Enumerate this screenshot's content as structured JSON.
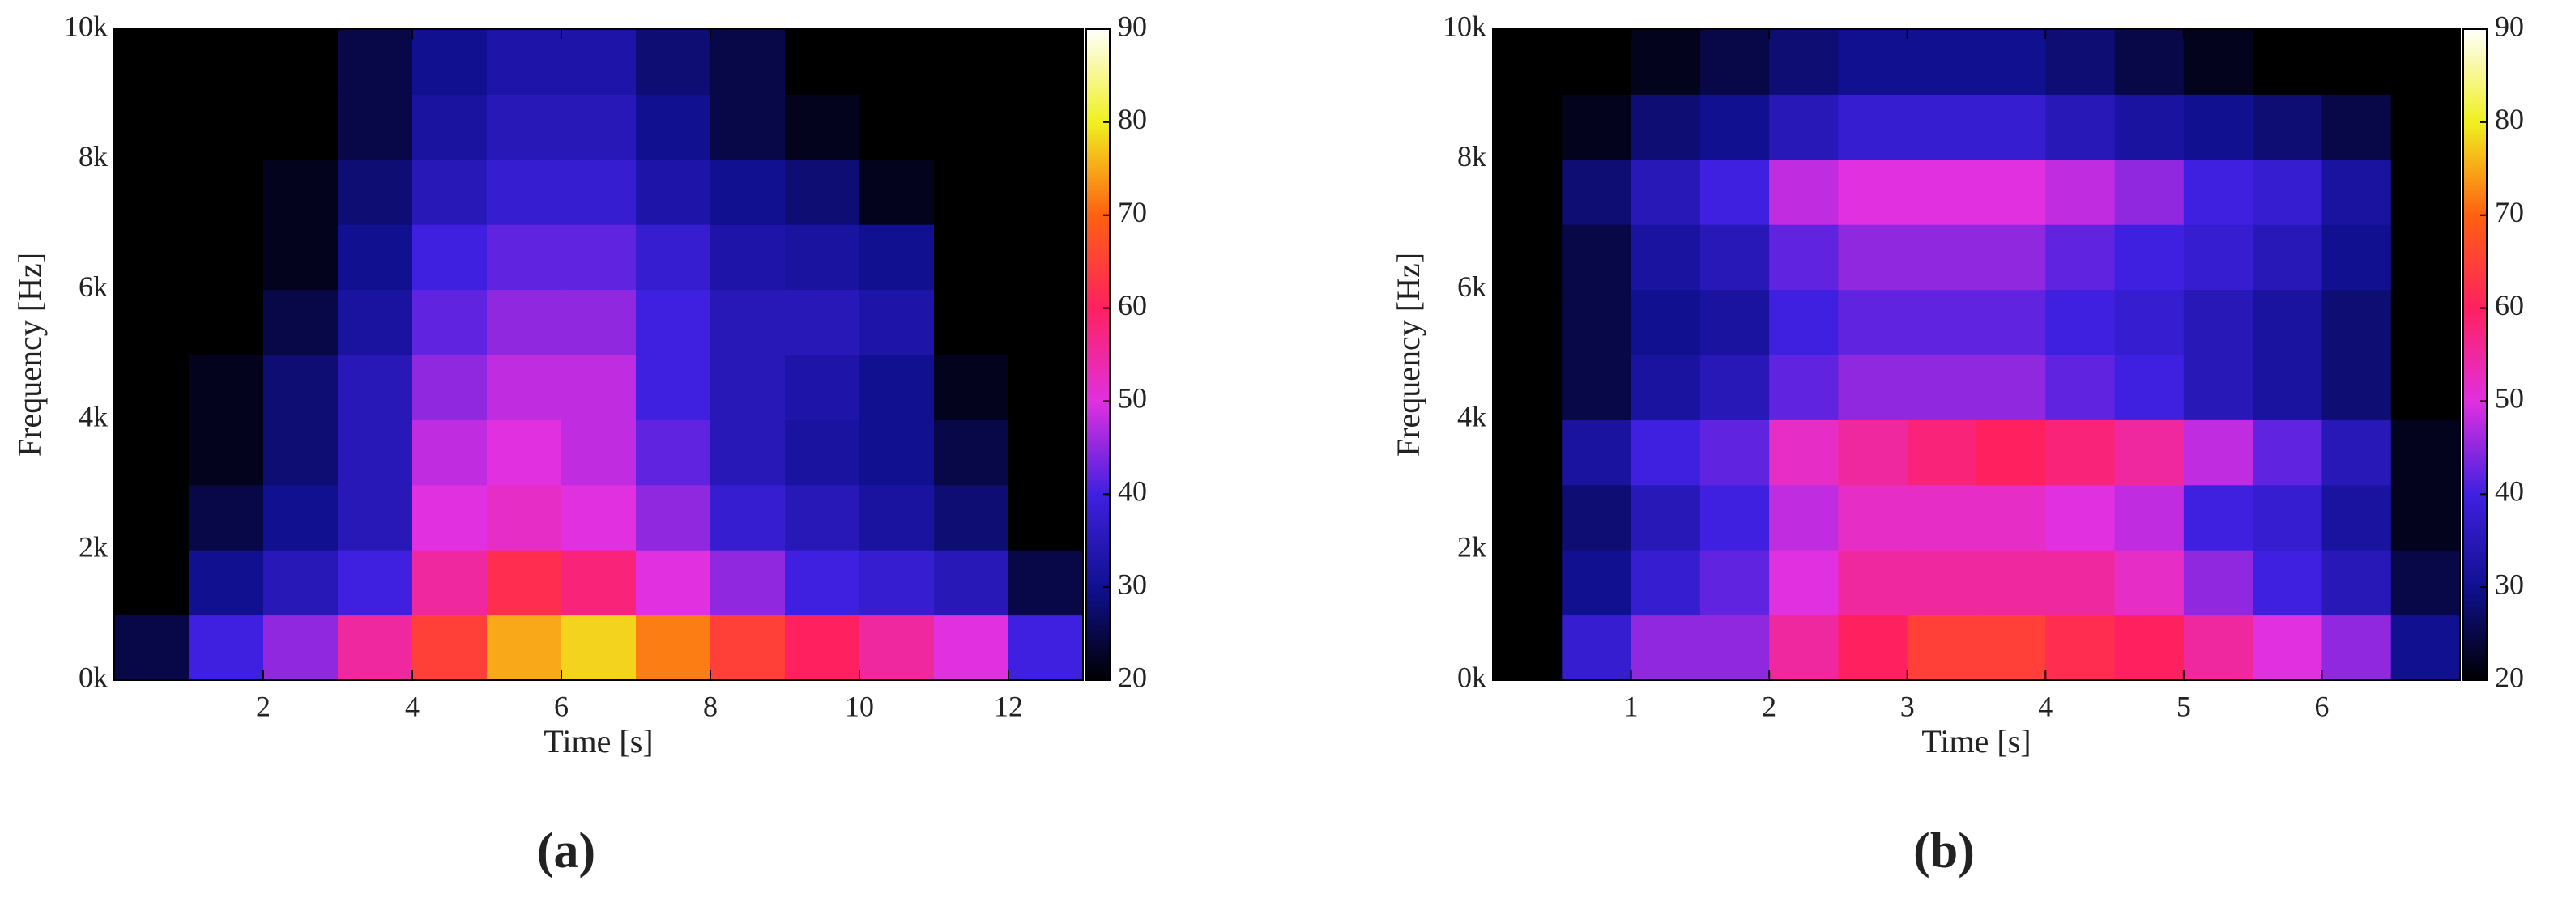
{
  "chart_data": [
    {
      "type": "heatmap",
      "caption": "(a)",
      "x_label": "Time [s]",
      "y_label": "Frequency [Hz]",
      "xlim": [
        0,
        13
      ],
      "xticks": [
        2,
        4,
        6,
        8,
        10,
        12
      ],
      "ylim": [
        0,
        10000
      ],
      "yticks": [
        {
          "value": 0,
          "label": "0k"
        },
        {
          "value": 2000,
          "label": "2k"
        },
        {
          "value": 4000,
          "label": "4k"
        },
        {
          "value": 6000,
          "label": "6k"
        },
        {
          "value": 8000,
          "label": "8k"
        },
        {
          "value": 10000,
          "label": "10k"
        }
      ],
      "clim": [
        20,
        90
      ],
      "cticks": [
        20,
        30,
        40,
        50,
        60,
        70,
        80,
        90
      ],
      "colormap": [
        "#000000",
        "#101090",
        "#4020e0",
        "#e030e0",
        "#ff2060",
        "#ff6010",
        "#f0f020",
        "#ffffff"
      ],
      "x": [
        0.5,
        1.5,
        2.5,
        3.5,
        4.5,
        5.5,
        6.5,
        7.5,
        8.5,
        9.5,
        10.5,
        11.5,
        12.5
      ],
      "y": [
        500,
        1500,
        2500,
        3500,
        4500,
        5500,
        6500,
        7500,
        8500,
        9500
      ],
      "z": [
        [
          25,
          40,
          45,
          55,
          65,
          75,
          78,
          72,
          65,
          60,
          55,
          50,
          40
        ],
        [
          20,
          30,
          35,
          40,
          55,
          62,
          58,
          50,
          45,
          40,
          38,
          35,
          25
        ],
        [
          20,
          25,
          30,
          35,
          50,
          52,
          50,
          45,
          38,
          35,
          32,
          28,
          20
        ],
        [
          20,
          22,
          28,
          35,
          48,
          50,
          48,
          42,
          35,
          32,
          30,
          25,
          20
        ],
        [
          20,
          22,
          28,
          35,
          45,
          48,
          48,
          40,
          35,
          33,
          30,
          22,
          20
        ],
        [
          20,
          20,
          25,
          32,
          42,
          45,
          45,
          40,
          35,
          35,
          33,
          20,
          20
        ],
        [
          20,
          20,
          22,
          30,
          40,
          42,
          42,
          38,
          33,
          32,
          30,
          20,
          20
        ],
        [
          20,
          20,
          22,
          28,
          35,
          38,
          38,
          33,
          30,
          28,
          22,
          20,
          20
        ],
        [
          20,
          20,
          20,
          25,
          32,
          35,
          35,
          30,
          25,
          22,
          20,
          20,
          20
        ],
        [
          20,
          20,
          20,
          25,
          30,
          33,
          33,
          28,
          25,
          20,
          20,
          20,
          20
        ]
      ]
    },
    {
      "type": "heatmap",
      "caption": "(b)",
      "x_label": "Time [s]",
      "y_label": "Frequency [Hz]",
      "xlim": [
        0,
        7
      ],
      "xticks": [
        1,
        2,
        3,
        4,
        5,
        6
      ],
      "ylim": [
        0,
        10000
      ],
      "yticks": [
        {
          "value": 0,
          "label": "0k"
        },
        {
          "value": 2000,
          "label": "2k"
        },
        {
          "value": 4000,
          "label": "4k"
        },
        {
          "value": 6000,
          "label": "6k"
        },
        {
          "value": 8000,
          "label": "8k"
        },
        {
          "value": 10000,
          "label": "10k"
        }
      ],
      "clim": [
        20,
        90
      ],
      "cticks": [
        20,
        30,
        40,
        50,
        60,
        70,
        80,
        90
      ],
      "colormap": [
        "#000000",
        "#101090",
        "#4020e0",
        "#e030e0",
        "#ff2060",
        "#ff6010",
        "#f0f020",
        "#ffffff"
      ],
      "x": [
        0.25,
        0.75,
        1.25,
        1.75,
        2.25,
        2.75,
        3.25,
        3.75,
        4.25,
        4.75,
        5.25,
        5.75,
        6.25,
        6.75
      ],
      "y": [
        500,
        1500,
        2500,
        3500,
        4500,
        5500,
        6500,
        7500,
        8500,
        9500
      ],
      "z": [
        [
          20,
          38,
          45,
          45,
          55,
          60,
          65,
          65,
          62,
          60,
          55,
          50,
          45,
          30
        ],
        [
          20,
          30,
          38,
          42,
          50,
          55,
          55,
          55,
          55,
          52,
          45,
          40,
          35,
          25
        ],
        [
          20,
          28,
          35,
          40,
          48,
          52,
          52,
          52,
          50,
          48,
          40,
          38,
          32,
          22
        ],
        [
          20,
          32,
          40,
          42,
          52,
          55,
          58,
          60,
          58,
          55,
          48,
          42,
          35,
          22
        ],
        [
          20,
          25,
          32,
          35,
          42,
          45,
          45,
          45,
          42,
          40,
          35,
          32,
          28,
          20
        ],
        [
          20,
          25,
          30,
          32,
          40,
          42,
          42,
          42,
          40,
          38,
          35,
          32,
          28,
          20
        ],
        [
          20,
          25,
          32,
          35,
          42,
          45,
          45,
          45,
          42,
          40,
          38,
          35,
          30,
          20
        ],
        [
          20,
          28,
          35,
          40,
          48,
          50,
          50,
          50,
          48,
          45,
          40,
          38,
          32,
          20
        ],
        [
          20,
          22,
          28,
          30,
          35,
          38,
          38,
          38,
          35,
          32,
          30,
          28,
          25,
          20
        ],
        [
          20,
          20,
          22,
          25,
          28,
          30,
          30,
          30,
          28,
          25,
          22,
          20,
          20,
          20
        ]
      ]
    }
  ]
}
